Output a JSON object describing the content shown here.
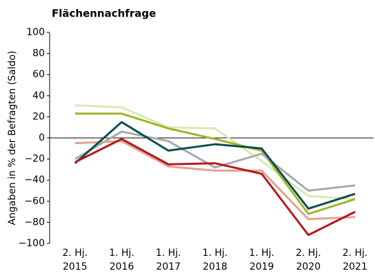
{
  "chart_data": {
    "type": "line",
    "title": "Flächennachfrage",
    "ylabel": "Angaben in % der Befragten (Saldo)",
    "categories": [
      [
        "2. Hj.",
        "2015"
      ],
      [
        "1. Hj.",
        "2016"
      ],
      [
        "1. Hj.",
        "2017"
      ],
      [
        "1. Hj.",
        "2018"
      ],
      [
        "1. Hj.",
        "2019"
      ],
      [
        "2. Hj.",
        "2020"
      ],
      [
        "2. Hj.",
        "2021"
      ]
    ],
    "series": [
      {
        "color": "#dde7b3",
        "values": [
          31,
          29,
          10,
          9,
          -22,
          -55,
          -58
        ]
      },
      {
        "color": "#9bb629",
        "values": [
          23,
          23,
          9,
          -1,
          -12,
          -72,
          -58
        ]
      },
      {
        "color": "#a3abb1",
        "values": [
          -20,
          6,
          -3,
          -28,
          -15,
          -50,
          -45
        ]
      },
      {
        "color": "#e2a390",
        "values": [
          -5,
          -3,
          -27,
          -31,
          -31,
          -77,
          -75
        ]
      },
      {
        "color": "#0f4d4a",
        "values": [
          -24,
          15,
          -12,
          -6,
          -10,
          -67,
          -53
        ]
      },
      {
        "color": "#b5191c",
        "values": [
          -23,
          -1,
          -25,
          -24,
          -34,
          -92,
          -70
        ]
      }
    ],
    "ylim": [
      -100,
      100
    ],
    "yticks": [
      {
        "value": -100,
        "label": "−100"
      },
      {
        "value": -80,
        "label": "−80"
      },
      {
        "value": -60,
        "label": "−60"
      },
      {
        "value": -40,
        "label": "−40"
      },
      {
        "value": -20,
        "label": "−20"
      },
      0,
      20,
      40,
      60,
      80,
      100
    ]
  }
}
